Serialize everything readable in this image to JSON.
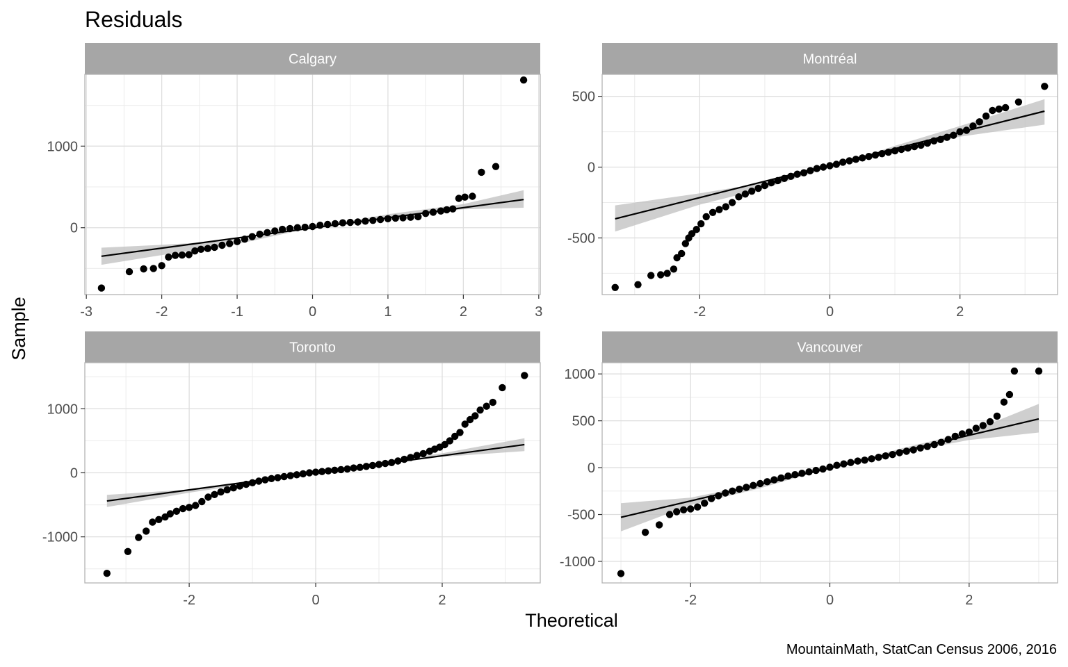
{
  "chart_data": {
    "type": "scatter",
    "title": "Residuals",
    "xlabel": "Theoretical",
    "ylabel": "Sample",
    "caption": "MountainMath, StatCan Census 2006, 2016",
    "grid": true,
    "panels": [
      {
        "name": "Calgary",
        "xlim": [
          -3.02,
          3.02
        ],
        "ylim": [
          -820,
          1880
        ],
        "x_ticks": [
          -3,
          -2,
          -1,
          0,
          1,
          2,
          3
        ],
        "x_tick_labels": [
          "-3",
          "-2",
          "-1",
          "0",
          "1",
          "2",
          "3"
        ],
        "y_ticks": [
          0,
          1000
        ],
        "y_tick_labels": [
          "0",
          "1000"
        ],
        "fit_line": {
          "x": [
            -2.8,
            2.8
          ],
          "y": [
            -350,
            345
          ]
        },
        "band": {
          "x": [
            -2.8,
            -2.0,
            -1.0,
            0.0,
            1.0,
            2.0,
            2.8
          ],
          "lower": [
            -455,
            -335,
            -200,
            0,
            120,
            225,
            245
          ],
          "upper": [
            -245,
            -210,
            -155,
            0,
            165,
            290,
            460
          ]
        },
        "points": [
          [
            -2.8,
            -740
          ],
          [
            -2.43,
            -540
          ],
          [
            -2.24,
            -505
          ],
          [
            -2.11,
            -500
          ],
          [
            -2.0,
            -465
          ],
          [
            -1.91,
            -360
          ],
          [
            -1.82,
            -340
          ],
          [
            -1.73,
            -335
          ],
          [
            -1.64,
            -330
          ],
          [
            -1.56,
            -285
          ],
          [
            -1.48,
            -265
          ],
          [
            -1.39,
            -255
          ],
          [
            -1.3,
            -240
          ],
          [
            -1.2,
            -215
          ],
          [
            -1.1,
            -195
          ],
          [
            -1.0,
            -170
          ],
          [
            -0.9,
            -140
          ],
          [
            -0.8,
            -110
          ],
          [
            -0.7,
            -80
          ],
          [
            -0.6,
            -60
          ],
          [
            -0.5,
            -40
          ],
          [
            -0.4,
            -20
          ],
          [
            -0.3,
            -10
          ],
          [
            -0.2,
            0
          ],
          [
            -0.1,
            5
          ],
          [
            0.0,
            15
          ],
          [
            0.1,
            30
          ],
          [
            0.2,
            40
          ],
          [
            0.3,
            50
          ],
          [
            0.4,
            60
          ],
          [
            0.5,
            65
          ],
          [
            0.6,
            70
          ],
          [
            0.7,
            80
          ],
          [
            0.8,
            90
          ],
          [
            0.9,
            100
          ],
          [
            1.0,
            110
          ],
          [
            1.1,
            118
          ],
          [
            1.2,
            122
          ],
          [
            1.3,
            128
          ],
          [
            1.4,
            135
          ],
          [
            1.5,
            175
          ],
          [
            1.6,
            190
          ],
          [
            1.7,
            205
          ],
          [
            1.78,
            220
          ],
          [
            1.86,
            230
          ],
          [
            1.94,
            360
          ],
          [
            2.02,
            375
          ],
          [
            2.12,
            385
          ],
          [
            2.24,
            680
          ],
          [
            2.43,
            750
          ],
          [
            2.8,
            1810
          ]
        ]
      },
      {
        "name": "Montréal",
        "xlim": [
          -3.5,
          3.5
        ],
        "ylim": [
          -900,
          655
        ],
        "x_ticks": [
          -2,
          0,
          2
        ],
        "x_tick_labels": [
          "-2",
          "0",
          "2"
        ],
        "y_ticks": [
          -500,
          0,
          500
        ],
        "y_tick_labels": [
          "-500",
          "0",
          "500"
        ],
        "fit_line": {
          "x": [
            -3.3,
            3.3
          ],
          "y": [
            -365,
            395
          ]
        },
        "band": {
          "x": [
            -3.3,
            -2.0,
            -1.0,
            0.0,
            1.0,
            2.0,
            3.3
          ],
          "lower": [
            -455,
            -265,
            -150,
            0,
            110,
            215,
            300
          ],
          "upper": [
            -270,
            -185,
            -110,
            0,
            150,
            290,
            480
          ]
        },
        "points": [
          [
            -3.3,
            -850
          ],
          [
            -2.95,
            -830
          ],
          [
            -2.75,
            -765
          ],
          [
            -2.6,
            -760
          ],
          [
            -2.5,
            -750
          ],
          [
            -2.4,
            -720
          ],
          [
            -2.35,
            -640
          ],
          [
            -2.28,
            -610
          ],
          [
            -2.22,
            -540
          ],
          [
            -2.17,
            -500
          ],
          [
            -2.12,
            -470
          ],
          [
            -2.05,
            -440
          ],
          [
            -1.98,
            -400
          ],
          [
            -1.9,
            -350
          ],
          [
            -1.8,
            -320
          ],
          [
            -1.7,
            -300
          ],
          [
            -1.6,
            -280
          ],
          [
            -1.5,
            -250
          ],
          [
            -1.4,
            -210
          ],
          [
            -1.3,
            -190
          ],
          [
            -1.2,
            -170
          ],
          [
            -1.1,
            -150
          ],
          [
            -1.0,
            -130
          ],
          [
            -0.9,
            -110
          ],
          [
            -0.8,
            -95
          ],
          [
            -0.7,
            -80
          ],
          [
            -0.6,
            -65
          ],
          [
            -0.5,
            -50
          ],
          [
            -0.4,
            -40
          ],
          [
            -0.3,
            -25
          ],
          [
            -0.2,
            -10
          ],
          [
            -0.1,
            0
          ],
          [
            0.0,
            10
          ],
          [
            0.1,
            20
          ],
          [
            0.2,
            35
          ],
          [
            0.3,
            45
          ],
          [
            0.4,
            55
          ],
          [
            0.5,
            65
          ],
          [
            0.6,
            75
          ],
          [
            0.7,
            85
          ],
          [
            0.8,
            95
          ],
          [
            0.9,
            105
          ],
          [
            1.0,
            115
          ],
          [
            1.1,
            125
          ],
          [
            1.2,
            135
          ],
          [
            1.3,
            145
          ],
          [
            1.4,
            155
          ],
          [
            1.5,
            170
          ],
          [
            1.6,
            185
          ],
          [
            1.7,
            195
          ],
          [
            1.8,
            210
          ],
          [
            1.9,
            225
          ],
          [
            2.0,
            250
          ],
          [
            2.1,
            260
          ],
          [
            2.2,
            290
          ],
          [
            2.3,
            320
          ],
          [
            2.4,
            360
          ],
          [
            2.5,
            400
          ],
          [
            2.6,
            410
          ],
          [
            2.7,
            420
          ],
          [
            2.9,
            460
          ],
          [
            3.3,
            570
          ]
        ]
      },
      {
        "name": "Toronto",
        "xlim": [
          -3.65,
          3.55
        ],
        "ylim": [
          -1720,
          1720
        ],
        "x_ticks": [
          -2,
          0,
          2
        ],
        "x_tick_labels": [
          "-2",
          "0",
          "2"
        ],
        "y_ticks": [
          -1000,
          0,
          1000
        ],
        "y_tick_labels": [
          "-1000",
          "0",
          "1000"
        ],
        "fit_line": {
          "x": [
            -3.3,
            3.3
          ],
          "y": [
            -440,
            440
          ]
        },
        "band": {
          "x": [
            -3.3,
            -2.0,
            -1.0,
            0.0,
            1.0,
            2.0,
            3.3
          ],
          "lower": [
            -535,
            -310,
            -165,
            0,
            135,
            250,
            340
          ],
          "upper": [
            -345,
            -260,
            -135,
            0,
            165,
            305,
            540
          ]
        },
        "points": [
          [
            -3.3,
            -1570
          ],
          [
            -2.97,
            -1230
          ],
          [
            -2.8,
            -1010
          ],
          [
            -2.68,
            -910
          ],
          [
            -2.58,
            -770
          ],
          [
            -2.48,
            -730
          ],
          [
            -2.38,
            -690
          ],
          [
            -2.3,
            -640
          ],
          [
            -2.2,
            -600
          ],
          [
            -2.1,
            -560
          ],
          [
            -2.0,
            -540
          ],
          [
            -1.9,
            -510
          ],
          [
            -1.8,
            -450
          ],
          [
            -1.7,
            -380
          ],
          [
            -1.6,
            -340
          ],
          [
            -1.5,
            -300
          ],
          [
            -1.4,
            -265
          ],
          [
            -1.3,
            -235
          ],
          [
            -1.2,
            -205
          ],
          [
            -1.1,
            -180
          ],
          [
            -1.0,
            -155
          ],
          [
            -0.9,
            -130
          ],
          [
            -0.8,
            -110
          ],
          [
            -0.7,
            -90
          ],
          [
            -0.6,
            -75
          ],
          [
            -0.5,
            -60
          ],
          [
            -0.4,
            -45
          ],
          [
            -0.3,
            -30
          ],
          [
            -0.2,
            -15
          ],
          [
            -0.1,
            0
          ],
          [
            0.0,
            10
          ],
          [
            0.1,
            20
          ],
          [
            0.2,
            30
          ],
          [
            0.3,
            40
          ],
          [
            0.4,
            50
          ],
          [
            0.5,
            60
          ],
          [
            0.6,
            75
          ],
          [
            0.7,
            85
          ],
          [
            0.8,
            100
          ],
          [
            0.9,
            115
          ],
          [
            1.0,
            130
          ],
          [
            1.1,
            145
          ],
          [
            1.2,
            160
          ],
          [
            1.3,
            185
          ],
          [
            1.4,
            210
          ],
          [
            1.5,
            240
          ],
          [
            1.6,
            270
          ],
          [
            1.7,
            300
          ],
          [
            1.8,
            335
          ],
          [
            1.88,
            370
          ],
          [
            1.96,
            400
          ],
          [
            2.04,
            440
          ],
          [
            2.12,
            500
          ],
          [
            2.2,
            570
          ],
          [
            2.28,
            630
          ],
          [
            2.36,
            760
          ],
          [
            2.44,
            830
          ],
          [
            2.52,
            890
          ],
          [
            2.6,
            980
          ],
          [
            2.7,
            1040
          ],
          [
            2.8,
            1100
          ],
          [
            2.95,
            1330
          ],
          [
            3.3,
            1520
          ]
        ]
      },
      {
        "name": "Vancouver",
        "xlim": [
          -3.27,
          3.27
        ],
        "ylim": [
          -1230,
          1120
        ],
        "x_ticks": [
          -2,
          0,
          2
        ],
        "x_tick_labels": [
          "-2",
          "0",
          "2"
        ],
        "y_ticks": [
          -1000,
          -500,
          0,
          500,
          1000
        ],
        "y_tick_labels": [
          "-1000",
          "-500",
          "0",
          "500",
          "1000"
        ],
        "fit_line": {
          "x": [
            -3.0,
            3.0
          ],
          "y": [
            -530,
            520
          ]
        },
        "band": {
          "x": [
            -3.0,
            -2.0,
            -1.0,
            0.0,
            1.0,
            2.0,
            3.0
          ],
          "lower": [
            -680,
            -400,
            -220,
            0,
            155,
            295,
            375
          ],
          "upper": [
            -380,
            -320,
            -170,
            0,
            200,
            380,
            680
          ]
        },
        "points": [
          [
            -3.0,
            -1130
          ],
          [
            -2.65,
            -690
          ],
          [
            -2.45,
            -610
          ],
          [
            -2.3,
            -500
          ],
          [
            -2.2,
            -470
          ],
          [
            -2.1,
            -450
          ],
          [
            -2.0,
            -440
          ],
          [
            -1.9,
            -420
          ],
          [
            -1.8,
            -380
          ],
          [
            -1.7,
            -330
          ],
          [
            -1.6,
            -300
          ],
          [
            -1.5,
            -270
          ],
          [
            -1.4,
            -250
          ],
          [
            -1.3,
            -230
          ],
          [
            -1.2,
            -210
          ],
          [
            -1.1,
            -190
          ],
          [
            -1.0,
            -170
          ],
          [
            -0.9,
            -150
          ],
          [
            -0.8,
            -130
          ],
          [
            -0.7,
            -110
          ],
          [
            -0.6,
            -90
          ],
          [
            -0.5,
            -75
          ],
          [
            -0.4,
            -60
          ],
          [
            -0.3,
            -45
          ],
          [
            -0.2,
            -30
          ],
          [
            -0.1,
            -15
          ],
          [
            0.0,
            5
          ],
          [
            0.1,
            25
          ],
          [
            0.2,
            40
          ],
          [
            0.3,
            55
          ],
          [
            0.4,
            70
          ],
          [
            0.5,
            80
          ],
          [
            0.6,
            95
          ],
          [
            0.7,
            110
          ],
          [
            0.8,
            125
          ],
          [
            0.9,
            140
          ],
          [
            1.0,
            160
          ],
          [
            1.1,
            175
          ],
          [
            1.2,
            190
          ],
          [
            1.3,
            210
          ],
          [
            1.4,
            225
          ],
          [
            1.5,
            245
          ],
          [
            1.6,
            270
          ],
          [
            1.7,
            300
          ],
          [
            1.8,
            335
          ],
          [
            1.9,
            360
          ],
          [
            2.0,
            380
          ],
          [
            2.1,
            420
          ],
          [
            2.2,
            450
          ],
          [
            2.3,
            490
          ],
          [
            2.4,
            550
          ],
          [
            2.5,
            700
          ],
          [
            2.58,
            780
          ],
          [
            2.65,
            1030
          ],
          [
            3.0,
            1030
          ]
        ]
      }
    ]
  }
}
